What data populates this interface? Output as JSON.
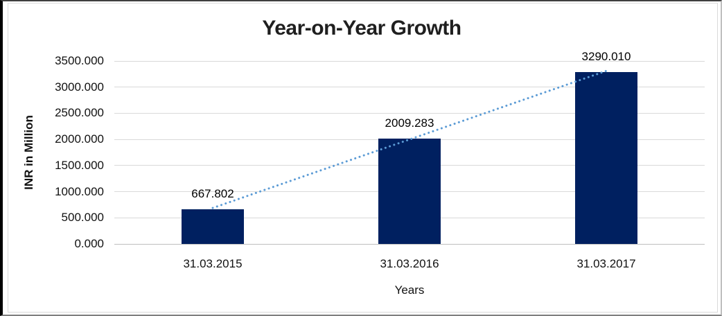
{
  "chart_data": {
    "type": "bar",
    "title": "Year-on-Year Growth",
    "xlabel": "Years",
    "ylabel": "INR in Million",
    "categories": [
      "31.03.2015",
      "31.03.2016",
      "31.03.2017"
    ],
    "values": [
      667.802,
      2009.283,
      3290.01
    ],
    "data_labels": [
      "667.802",
      "2009.283",
      "3290.010"
    ],
    "y_ticks": [
      0,
      500,
      1000,
      1500,
      2000,
      2500,
      3000,
      3500
    ],
    "y_tick_labels": [
      "0.000",
      "500.000",
      "1000.000",
      "1500.000",
      "2000.000",
      "2500.000",
      "3000.000",
      "3500.000"
    ],
    "ylim": [
      0,
      3500
    ],
    "grid": true,
    "legend": "none",
    "trendline": {
      "type": "linear",
      "style": "dotted",
      "color": "#5b9bd5"
    },
    "colors": {
      "bar": "#002060",
      "gridline": "#d9d9d9",
      "axis_line": "#bfbfbf",
      "title_text": "#1f1f1f",
      "tick_text": "#111111"
    }
  }
}
